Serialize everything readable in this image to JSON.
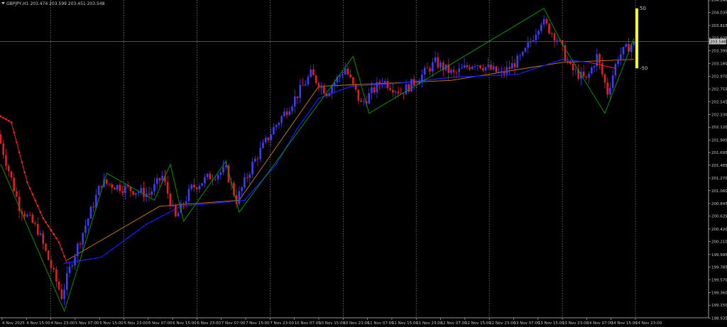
{
  "header": {
    "symbol_text": "GBPJPY,H1  203.474 203.599 203.451 203.548"
  },
  "colors": {
    "background": "#000000",
    "grid": "#8a8a8a",
    "axis": "#c8c8c8",
    "bull_candle": "#3c3cff",
    "bear_candle": "#e02020",
    "zigzag": "#00a000",
    "ma_blue": "#1a1aff",
    "ma_red": "#ff2020",
    "ma_orange": "#d08000",
    "indicator_bar": "#ffff00",
    "price_line": "#9a9a9a"
  },
  "chart_data": {
    "type": "candlestick",
    "title": "GBPJPY,H1",
    "ohlc_header": {
      "open": 203.474,
      "high": 203.599,
      "low": 203.451,
      "close": 203.548
    },
    "ylim": [
      198.94,
      204.24
    ],
    "y_ticks": [
      "204.240",
      "204.035",
      "203.815",
      "203.605",
      "203.395",
      "203.180",
      "202.970",
      "202.755",
      "202.545",
      "202.330",
      "202.120",
      "201.905",
      "201.695",
      "201.485",
      "201.270",
      "201.060",
      "200.845",
      "200.635",
      "200.420",
      "200.210",
      "199.995",
      "199.785",
      "199.570",
      "199.360",
      "199.150",
      "198.935"
    ],
    "x_ticks": [
      "4 Nov 2025",
      "4 Nov 15:00",
      "4 Nov 23:00",
      "5 Nov 07:00",
      "5 Nov 15:00",
      "5 Nov 23:00",
      "6 Nov 07:00",
      "6 Nov 15:00",
      "6 Nov 23:00",
      "7 Nov 07:00",
      "7 Nov 15:00",
      "7 Nov 23:00",
      "10 Nov 07:00",
      "10 Nov 15:00",
      "10 Nov 23:00",
      "11 Nov 07:00",
      "11 Nov 15:00",
      "11 Nov 23:00",
      "12 Nov 07:00",
      "12 Nov 15:00",
      "12 Nov 23:00",
      "13 Nov 07:00",
      "13 Nov 15:00",
      "13 Nov 23:00",
      "14 Nov 07:00",
      "14 Nov 15:00",
      "14 Nov 23:00"
    ],
    "day_separators": [
      "4 Nov 23:00",
      "5 Nov 23:00",
      "6 Nov 23:00",
      "7 Nov 23:00",
      "10 Nov 23:00",
      "11 Nov 23:00",
      "12 Nov 23:00",
      "13 Nov 23:00",
      "14 Nov 23:00"
    ],
    "current_price": "203.548",
    "indicator": {
      "upper_label": "50",
      "lower_label": "-50",
      "upper_value": 204.1,
      "lower_value": 203.1
    },
    "price_key_points": [
      {
        "i": 0,
        "p": 202.0
      },
      {
        "i": 8,
        "p": 200.8
      },
      {
        "i": 15,
        "p": 200.4
      },
      {
        "i": 24,
        "p": 199.3
      },
      {
        "i": 28,
        "p": 199.9
      },
      {
        "i": 34,
        "p": 200.6
      },
      {
        "i": 39,
        "p": 201.2
      },
      {
        "i": 48,
        "p": 201.1
      },
      {
        "i": 57,
        "p": 201.0
      },
      {
        "i": 62,
        "p": 201.3
      },
      {
        "i": 67,
        "p": 200.6
      },
      {
        "i": 73,
        "p": 201.1
      },
      {
        "i": 80,
        "p": 201.3
      },
      {
        "i": 86,
        "p": 201.4
      },
      {
        "i": 90,
        "p": 200.9
      },
      {
        "i": 96,
        "p": 201.5
      },
      {
        "i": 104,
        "p": 202.1
      },
      {
        "i": 112,
        "p": 202.6
      },
      {
        "i": 118,
        "p": 203.0
      },
      {
        "i": 124,
        "p": 202.7
      },
      {
        "i": 131,
        "p": 203.1
      },
      {
        "i": 137,
        "p": 202.5
      },
      {
        "i": 145,
        "p": 202.9
      },
      {
        "i": 152,
        "p": 202.7
      },
      {
        "i": 158,
        "p": 202.9
      },
      {
        "i": 165,
        "p": 203.2
      },
      {
        "i": 172,
        "p": 203.0
      },
      {
        "i": 180,
        "p": 203.2
      },
      {
        "i": 190,
        "p": 203.0
      },
      {
        "i": 198,
        "p": 203.3
      },
      {
        "i": 205,
        "p": 203.9
      },
      {
        "i": 211,
        "p": 203.6
      },
      {
        "i": 216,
        "p": 203.1
      },
      {
        "i": 222,
        "p": 202.9
      },
      {
        "i": 226,
        "p": 203.3
      },
      {
        "i": 230,
        "p": 202.7
      },
      {
        "i": 234,
        "p": 203.3
      },
      {
        "i": 239,
        "p": 203.5
      }
    ],
    "zigzag_points": [
      {
        "i": 0,
        "p": 201.5
      },
      {
        "i": 24,
        "p": 199.05
      },
      {
        "i": 40,
        "p": 201.35
      },
      {
        "i": 58,
        "p": 200.9
      },
      {
        "i": 64,
        "p": 201.5
      },
      {
        "i": 69,
        "p": 200.55
      },
      {
        "i": 85,
        "p": 201.55
      },
      {
        "i": 90,
        "p": 200.7
      },
      {
        "i": 133,
        "p": 203.3
      },
      {
        "i": 139,
        "p": 202.35
      },
      {
        "i": 205,
        "p": 204.1
      },
      {
        "i": 212,
        "p": 203.5
      },
      {
        "i": 228,
        "p": 202.35
      },
      {
        "i": 239,
        "p": 203.6
      }
    ],
    "ma_blue_points": [
      {
        "i": 24,
        "p": 199.85
      },
      {
        "i": 38,
        "p": 199.95
      },
      {
        "i": 55,
        "p": 200.5
      },
      {
        "i": 68,
        "p": 200.8
      },
      {
        "i": 80,
        "p": 200.85
      },
      {
        "i": 92,
        "p": 200.9
      },
      {
        "i": 104,
        "p": 201.5
      },
      {
        "i": 112,
        "p": 202.1
      },
      {
        "i": 120,
        "p": 202.6
      },
      {
        "i": 132,
        "p": 202.8
      },
      {
        "i": 150,
        "p": 202.85
      },
      {
        "i": 170,
        "p": 202.95
      },
      {
        "i": 195,
        "p": 203.0
      },
      {
        "i": 212,
        "p": 203.25
      },
      {
        "i": 222,
        "p": 203.2
      }
    ],
    "ma_red_points": [
      {
        "i": 0,
        "p": 202.3
      },
      {
        "i": 4,
        "p": 202.2
      },
      {
        "i": 10,
        "p": 201.2
      },
      {
        "i": 16,
        "p": 200.6
      },
      {
        "i": 22,
        "p": 200.2
      },
      {
        "i": 25,
        "p": 199.85
      }
    ],
    "ma_orange_points": [
      {
        "i": 25,
        "p": 199.9
      },
      {
        "i": 60,
        "p": 200.8
      },
      {
        "i": 90,
        "p": 200.9
      },
      {
        "i": 120,
        "p": 202.8
      },
      {
        "i": 170,
        "p": 202.9
      },
      {
        "i": 212,
        "p": 203.2
      },
      {
        "i": 239,
        "p": 203.25
      }
    ],
    "ma_red_tail_points": [
      {
        "i": 222,
        "p": 203.2
      },
      {
        "i": 232,
        "p": 203.1
      }
    ]
  }
}
